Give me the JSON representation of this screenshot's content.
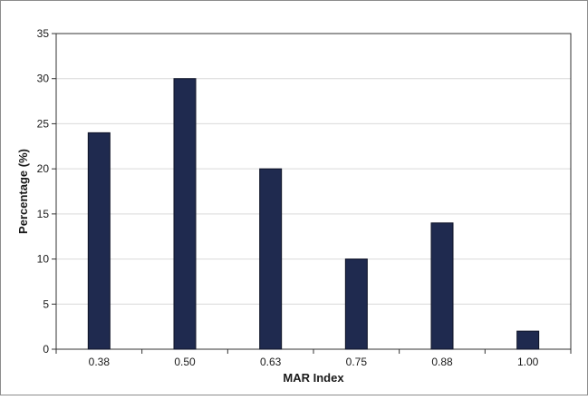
{
  "chart_data": {
    "type": "bar",
    "categories": [
      "0.38",
      "0.50",
      "0.63",
      "0.75",
      "0.88",
      "1.00"
    ],
    "values": [
      24,
      30,
      20,
      10,
      14,
      2
    ],
    "title": "",
    "xlabel": "MAR Index",
    "ylabel": "Percentage (%)",
    "ylim": [
      0,
      35
    ],
    "yticks": [
      "0",
      "5",
      "10",
      "15",
      "20",
      "25",
      "30",
      "35"
    ],
    "grid": true,
    "legend": "none",
    "colors": {
      "bar": "#1f2a4f",
      "bar_edge": "#0d1226",
      "grid": "#d9d9d9",
      "axis": "#333333"
    }
  }
}
